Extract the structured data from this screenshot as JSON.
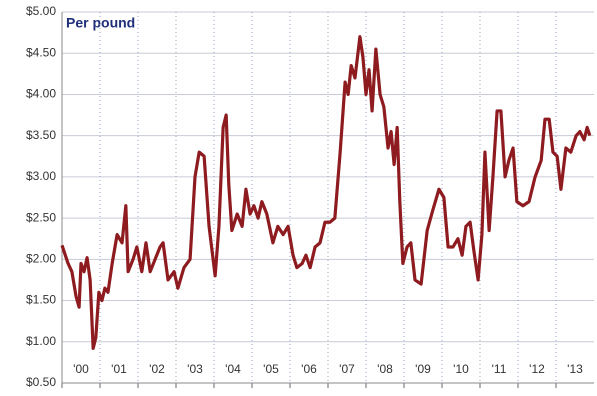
{
  "chart_data": {
    "type": "line",
    "title": "Per pound",
    "x": [
      2000.0,
      2000.16,
      2000.26,
      2000.37,
      2000.45,
      2000.5,
      2000.58,
      2000.66,
      2000.74,
      2000.82,
      2000.89,
      2000.97,
      2001.05,
      2001.13,
      2001.21,
      2001.32,
      2001.45,
      2001.58,
      2001.68,
      2001.74,
      2001.87,
      2001.97,
      2002.1,
      2002.21,
      2002.32,
      2002.45,
      2002.58,
      2002.66,
      2002.79,
      2002.95,
      2003.05,
      2003.21,
      2003.37,
      2003.5,
      2003.61,
      2003.74,
      2003.87,
      2004.03,
      2004.13,
      2004.24,
      2004.32,
      2004.39,
      2004.47,
      2004.61,
      2004.74,
      2004.84,
      2004.95,
      2005.05,
      2005.16,
      2005.26,
      2005.39,
      2005.55,
      2005.68,
      2005.82,
      2005.95,
      2006.08,
      2006.18,
      2006.32,
      2006.42,
      2006.53,
      2006.66,
      2006.79,
      2006.92,
      2007.05,
      2007.18,
      2007.32,
      2007.45,
      2007.53,
      2007.61,
      2007.71,
      2007.84,
      2007.92,
      2008.0,
      2008.08,
      2008.16,
      2008.26,
      2008.37,
      2008.47,
      2008.58,
      2008.66,
      2008.74,
      2008.82,
      2008.89,
      2008.97,
      2009.08,
      2009.18,
      2009.29,
      2009.45,
      2009.61,
      2009.76,
      2009.92,
      2010.05,
      2010.16,
      2010.29,
      2010.42,
      2010.53,
      2010.63,
      2010.74,
      2010.84,
      2010.95,
      2011.05,
      2011.13,
      2011.24,
      2011.34,
      2011.45,
      2011.55,
      2011.66,
      2011.76,
      2011.87,
      2011.97,
      2012.13,
      2012.29,
      2012.45,
      2012.61,
      2012.71,
      2012.82,
      2012.92,
      2013.03,
      2013.13,
      2013.26,
      2013.39,
      2013.53,
      2013.63,
      2013.74,
      2013.82,
      2013.89
    ],
    "series": [
      {
        "color": "#8e1b1f",
        "values": [
          2.17,
          1.95,
          1.85,
          1.55,
          1.42,
          1.95,
          1.85,
          2.02,
          1.75,
          0.92,
          1.05,
          1.6,
          1.5,
          1.65,
          1.6,
          1.95,
          2.3,
          2.2,
          2.65,
          1.85,
          2.0,
          2.15,
          1.85,
          2.2,
          1.85,
          2.0,
          2.15,
          2.2,
          1.75,
          1.85,
          1.65,
          1.9,
          2.0,
          3.0,
          3.3,
          3.25,
          2.4,
          1.8,
          2.4,
          3.6,
          3.75,
          2.9,
          2.35,
          2.55,
          2.4,
          2.85,
          2.55,
          2.65,
          2.5,
          2.7,
          2.55,
          2.2,
          2.4,
          2.3,
          2.4,
          2.05,
          1.9,
          1.95,
          2.05,
          1.9,
          2.15,
          2.2,
          2.45,
          2.45,
          2.5,
          3.3,
          4.15,
          4.0,
          4.35,
          4.2,
          4.7,
          4.45,
          4.0,
          4.3,
          3.8,
          4.55,
          4.0,
          3.85,
          3.35,
          3.55,
          3.15,
          3.6,
          2.7,
          1.95,
          2.15,
          2.2,
          1.75,
          1.7,
          2.35,
          2.6,
          2.85,
          2.75,
          2.15,
          2.15,
          2.25,
          2.05,
          2.4,
          2.45,
          2.1,
          1.75,
          2.3,
          3.3,
          2.35,
          3.0,
          3.8,
          3.8,
          3.0,
          3.2,
          3.35,
          2.7,
          2.65,
          2.7,
          3.0,
          3.2,
          3.7,
          3.7,
          3.3,
          3.25,
          2.85,
          3.35,
          3.3,
          3.5,
          3.55,
          3.45,
          3.6,
          3.5
        ]
      }
    ],
    "xlim": [
      2000,
      2014
    ],
    "xticks": [
      {
        "value": 2000,
        "label": "'00"
      },
      {
        "value": 2001,
        "label": "'01"
      },
      {
        "value": 2002,
        "label": "'02"
      },
      {
        "value": 2003,
        "label": "'03"
      },
      {
        "value": 2004,
        "label": "'04"
      },
      {
        "value": 2005,
        "label": "'05"
      },
      {
        "value": 2006,
        "label": "'06"
      },
      {
        "value": 2007,
        "label": "'07"
      },
      {
        "value": 2008,
        "label": "'08"
      },
      {
        "value": 2009,
        "label": "'09"
      },
      {
        "value": 2010,
        "label": "'10"
      },
      {
        "value": 2011,
        "label": "'11"
      },
      {
        "value": 2012,
        "label": "'12"
      },
      {
        "value": 2013,
        "label": "'13"
      }
    ],
    "ylim": [
      0.5,
      5
    ],
    "yticks": [
      {
        "value": 0.5,
        "label": "$0.50"
      },
      {
        "value": 1,
        "label": "$1.00"
      },
      {
        "value": 1.5,
        "label": "$1.50"
      },
      {
        "value": 2,
        "label": "$2.00"
      },
      {
        "value": 2.5,
        "label": "$2.50"
      },
      {
        "value": 3,
        "label": "$3.00"
      },
      {
        "value": 3.5,
        "label": "$3.50"
      },
      {
        "value": 4,
        "label": "$4.00"
      },
      {
        "value": 4.5,
        "label": "$4.50"
      },
      {
        "value": 5,
        "label": "$5.00"
      }
    ],
    "grid": true
  }
}
